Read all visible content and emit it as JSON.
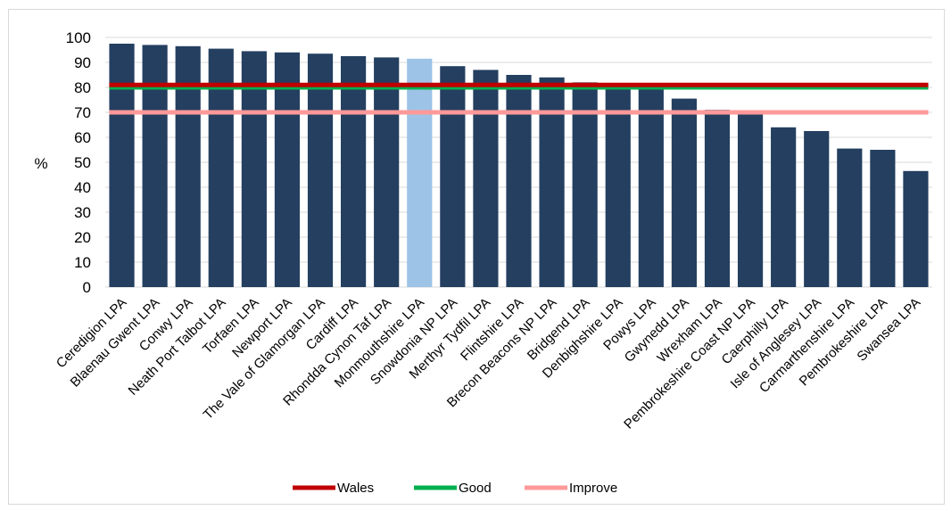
{
  "chart_data": {
    "type": "bar",
    "title": "",
    "xlabel": "",
    "ylabel": "%",
    "ylim": [
      0,
      100
    ],
    "yticks": [
      0,
      10,
      20,
      30,
      40,
      50,
      60,
      70,
      80,
      90,
      100
    ],
    "grid": true,
    "legend_position": "bottom",
    "categories": [
      "Ceredigion LPA",
      "Blaenau Gwent LPA",
      "Conwy LPA",
      "Neath Port Talbot LPA",
      "Torfaen LPA",
      "Newport LPA",
      "The Vale of Glamorgan LPA",
      "Cardiff LPA",
      "Rhondda Cynon Taf LPA",
      "Monmouthshire LPA",
      "Snowdonia NP LPA",
      "Merthyr Tydfil LPA",
      "Flintshire LPA",
      "Brecon Beacons NP LPA",
      "Bridgend LPA",
      "Denbighshire LPA",
      "Powys LPA",
      "Gwynedd LPA",
      "Wrexham LPA",
      "Pembrokeshire Coast NP LPA",
      "Caerphilly LPA",
      "Isle of Anglesey LPA",
      "Carmarthenshire LPA",
      "Pembrokeshire LPA",
      "Swansea LPA"
    ],
    "values": [
      97.5,
      97,
      96.5,
      95.5,
      94.5,
      94,
      93.5,
      92.5,
      92,
      91.5,
      88.5,
      87,
      85,
      84,
      82,
      81,
      80,
      75.5,
      71,
      70,
      64,
      62.5,
      55.5,
      55,
      46.5
    ],
    "highlight_index": 9,
    "bar_color": "#243f60",
    "highlight_color": "#9dc3e6",
    "reference_lines": [
      {
        "name": "Wales",
        "value": 81,
        "color": "#c00000"
      },
      {
        "name": "Good",
        "value": 80,
        "color": "#00b050"
      },
      {
        "name": "Improve",
        "value": 70,
        "color": "#ff9999"
      }
    ]
  }
}
